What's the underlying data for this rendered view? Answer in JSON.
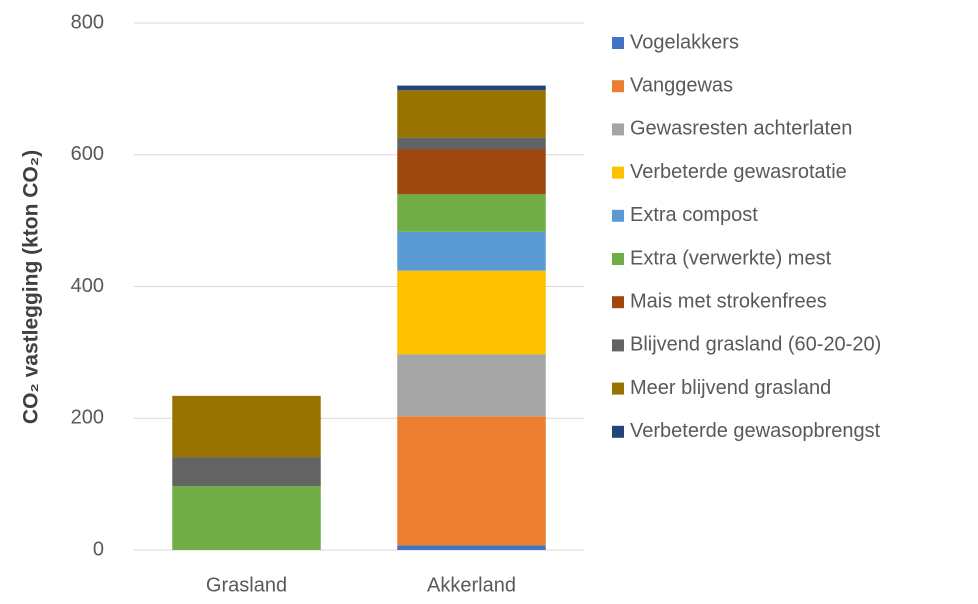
{
  "chart_data": {
    "type": "stacked_bar",
    "y_label": "CO₂ vastlegging (kton CO₂)",
    "categories": [
      "Grasland",
      "Akkerland"
    ],
    "series": [
      {
        "name": "Vogelakkers",
        "color": "#4472c4",
        "values": [
          0,
          7
        ]
      },
      {
        "name": "Vanggewas",
        "color": "#ed7d31",
        "values": [
          0,
          196
        ]
      },
      {
        "name": "Gewasresten achterlaten",
        "color": "#a5a5a5",
        "values": [
          0,
          94
        ]
      },
      {
        "name": "Verbeterde gewasrotatie",
        "color": "#ffc000",
        "values": [
          0,
          127
        ]
      },
      {
        "name": "Extra compost",
        "color": "#5b9bd5",
        "values": [
          0,
          59
        ]
      },
      {
        "name": "Extra (verwerkte) mest",
        "color": "#70ad47",
        "values": [
          97,
          57
        ]
      },
      {
        "name": "Mais met strokenfrees",
        "color": "#9e480e",
        "values": [
          0,
          68
        ]
      },
      {
        "name": "Blijvend grasland (60-20-20)",
        "color": "#636363",
        "values": [
          44,
          18
        ]
      },
      {
        "name": "Meer blijvend grasland",
        "color": "#997300",
        "values": [
          93,
          72
        ]
      },
      {
        "name": "Verbeterde gewasopbrengst",
        "color": "#264478",
        "values": [
          0,
          7
        ]
      }
    ],
    "ylim": [
      0,
      800
    ],
    "yticks": [
      0,
      200,
      400,
      600,
      800
    ],
    "grid": true,
    "legend": "right"
  }
}
